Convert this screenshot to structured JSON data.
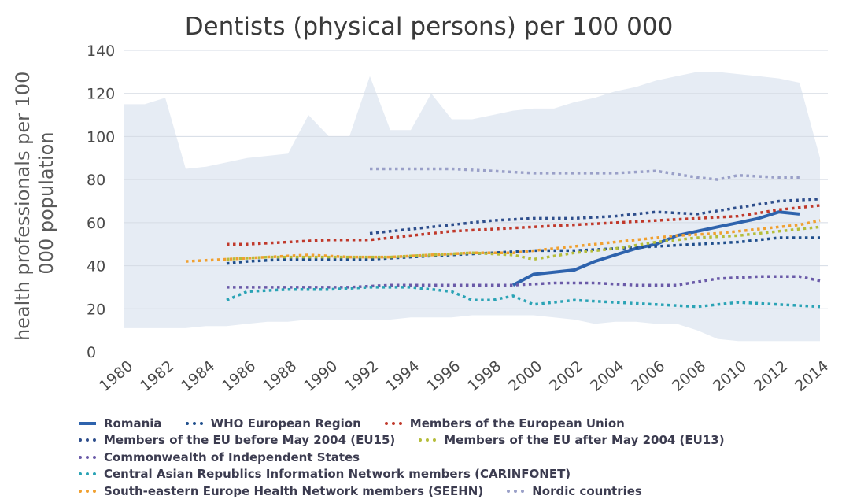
{
  "chart_data": {
    "type": "line",
    "title": "Dentists (physical persons) per 100 000",
    "ylabel": "health professionals per 100 000 population",
    "xlabel": "",
    "xlim": [
      1980,
      2014
    ],
    "ylim": [
      0,
      140
    ],
    "x_ticks": [
      "1980",
      "1982",
      "1984",
      "1986",
      "1988",
      "1990",
      "1992",
      "1994",
      "1996",
      "1998",
      "2000",
      "2002",
      "2004",
      "2006",
      "2008",
      "2010",
      "2012",
      "2014"
    ],
    "y_ticks": [
      "0",
      "20",
      "40",
      "60",
      "80",
      "100",
      "120",
      "140"
    ],
    "grid": true,
    "legend_position": "bottom",
    "range_band": {
      "x": [
        1980,
        1981,
        1982,
        1983,
        1984,
        1985,
        1986,
        1987,
        1988,
        1989,
        1990,
        1991,
        1992,
        1993,
        1994,
        1995,
        1996,
        1997,
        1998,
        1999,
        2000,
        2001,
        2002,
        2003,
        2004,
        2005,
        2006,
        2007,
        2008,
        2009,
        2010,
        2011,
        2012,
        2013,
        2014
      ],
      "upper": [
        115,
        115,
        118,
        85,
        86,
        88,
        90,
        91,
        92,
        110,
        100,
        100,
        128,
        103,
        103,
        120,
        108,
        108,
        110,
        112,
        113,
        113,
        116,
        118,
        121,
        123,
        126,
        128,
        130,
        130,
        129,
        128,
        127,
        125,
        90
      ],
      "lower": [
        11,
        11,
        11,
        11,
        12,
        12,
        13,
        14,
        14,
        15,
        15,
        15,
        15,
        15,
        16,
        16,
        16,
        17,
        17,
        17,
        17,
        16,
        15,
        13,
        14,
        14,
        13,
        13,
        10,
        6,
        5,
        5,
        5,
        5,
        5
      ]
    },
    "series": [
      {
        "name": "Romania",
        "color": "#2e63ad",
        "style": "solid",
        "x": [
          1999,
          2000,
          2001,
          2002,
          2003,
          2004,
          2005,
          2006,
          2007,
          2008,
          2009,
          2010,
          2011,
          2012,
          2013
        ],
        "values": [
          31,
          36,
          37,
          38,
          42,
          45,
          48,
          50,
          54,
          56,
          58,
          60,
          62,
          65,
          64
        ]
      },
      {
        "name": "WHO European Region",
        "color": "#1f4e8c",
        "style": "dotted",
        "x": [
          1985,
          1986,
          1988,
          1990,
          1992,
          1994,
          1996,
          1998,
          2000,
          2002,
          2004,
          2006,
          2008,
          2010,
          2012,
          2014
        ],
        "values": [
          41,
          42,
          43,
          43,
          43,
          44,
          45,
          46,
          47,
          47,
          48,
          49,
          50,
          51,
          53,
          53
        ]
      },
      {
        "name": "Members of the European Union",
        "color": "#c0392b",
        "style": "dotted",
        "x": [
          1985,
          1986,
          1988,
          1990,
          1992,
          1994,
          1996,
          1998,
          2000,
          2002,
          2004,
          2006,
          2008,
          2010,
          2012,
          2014
        ],
        "values": [
          50,
          50,
          51,
          52,
          52,
          54,
          56,
          57,
          58,
          59,
          60,
          61,
          62,
          63,
          66,
          68
        ]
      },
      {
        "name": "Members of the EU before May 2004 (EU15)",
        "color": "#2e4e8c",
        "style": "dotted",
        "x": [
          1992,
          1994,
          1996,
          1998,
          2000,
          2002,
          2004,
          2006,
          2008,
          2010,
          2012,
          2014
        ],
        "values": [
          55,
          57,
          59,
          61,
          62,
          62,
          63,
          65,
          64,
          67,
          70,
          71
        ]
      },
      {
        "name": "Members of the EU after May 2004 (EU13)",
        "color": "#b5bd3a",
        "style": "dotted",
        "x": [
          1985,
          1987,
          1989,
          1991,
          1993,
          1995,
          1997,
          1999,
          2000,
          2002,
          2004,
          2006,
          2008,
          2010,
          2012,
          2014
        ],
        "values": [
          43,
          44,
          44,
          44,
          44,
          45,
          46,
          45,
          43,
          46,
          48,
          51,
          53,
          54,
          56,
          58
        ]
      },
      {
        "name": "Commonwealth of Independent States",
        "color": "#6a5aa8",
        "style": "dotted",
        "x": [
          1985,
          1987,
          1989,
          1991,
          1993,
          1995,
          1997,
          1999,
          2001,
          2003,
          2005,
          2007,
          2009,
          2011,
          2013,
          2014
        ],
        "values": [
          30,
          30,
          30,
          30,
          31,
          31,
          31,
          31,
          32,
          32,
          31,
          31,
          34,
          35,
          35,
          33
        ]
      },
      {
        "name": "Central Asian Republics Information Network members (CARINFONET)",
        "color": "#2aa3b5",
        "style": "dotted",
        "x": [
          1985,
          1986,
          1988,
          1990,
          1992,
          1994,
          1996,
          1997,
          1998,
          1999,
          2000,
          2002,
          2004,
          2006,
          2008,
          2010,
          2012,
          2014
        ],
        "values": [
          24,
          28,
          29,
          29,
          30,
          30,
          28,
          24,
          24,
          26,
          22,
          24,
          23,
          22,
          21,
          23,
          22,
          21
        ]
      },
      {
        "name": "South-eastern Europe Health Network members (SEEHN)",
        "color": "#f0a030",
        "style": "dotted",
        "x": [
          1983,
          1985,
          1987,
          1989,
          1991,
          1993,
          1995,
          1997,
          1999,
          2001,
          2003,
          2005,
          2007,
          2009,
          2011,
          2013,
          2014
        ],
        "values": [
          42,
          43,
          44,
          45,
          44,
          44,
          45,
          46,
          46,
          48,
          50,
          52,
          54,
          55,
          57,
          59,
          61
        ]
      },
      {
        "name": "Nordic countries",
        "color": "#9aa0c8",
        "style": "dotted",
        "x": [
          1992,
          1994,
          1996,
          1998,
          2000,
          2002,
          2004,
          2006,
          2008,
          2009,
          2010,
          2012,
          2013
        ],
        "values": [
          85,
          85,
          85,
          84,
          83,
          83,
          83,
          84,
          81,
          80,
          82,
          81,
          81
        ]
      }
    ]
  },
  "legend": {
    "rows": [
      [
        0,
        1,
        2
      ],
      [
        3,
        4
      ],
      [
        5
      ],
      [
        6
      ],
      [
        7,
        8
      ]
    ]
  }
}
